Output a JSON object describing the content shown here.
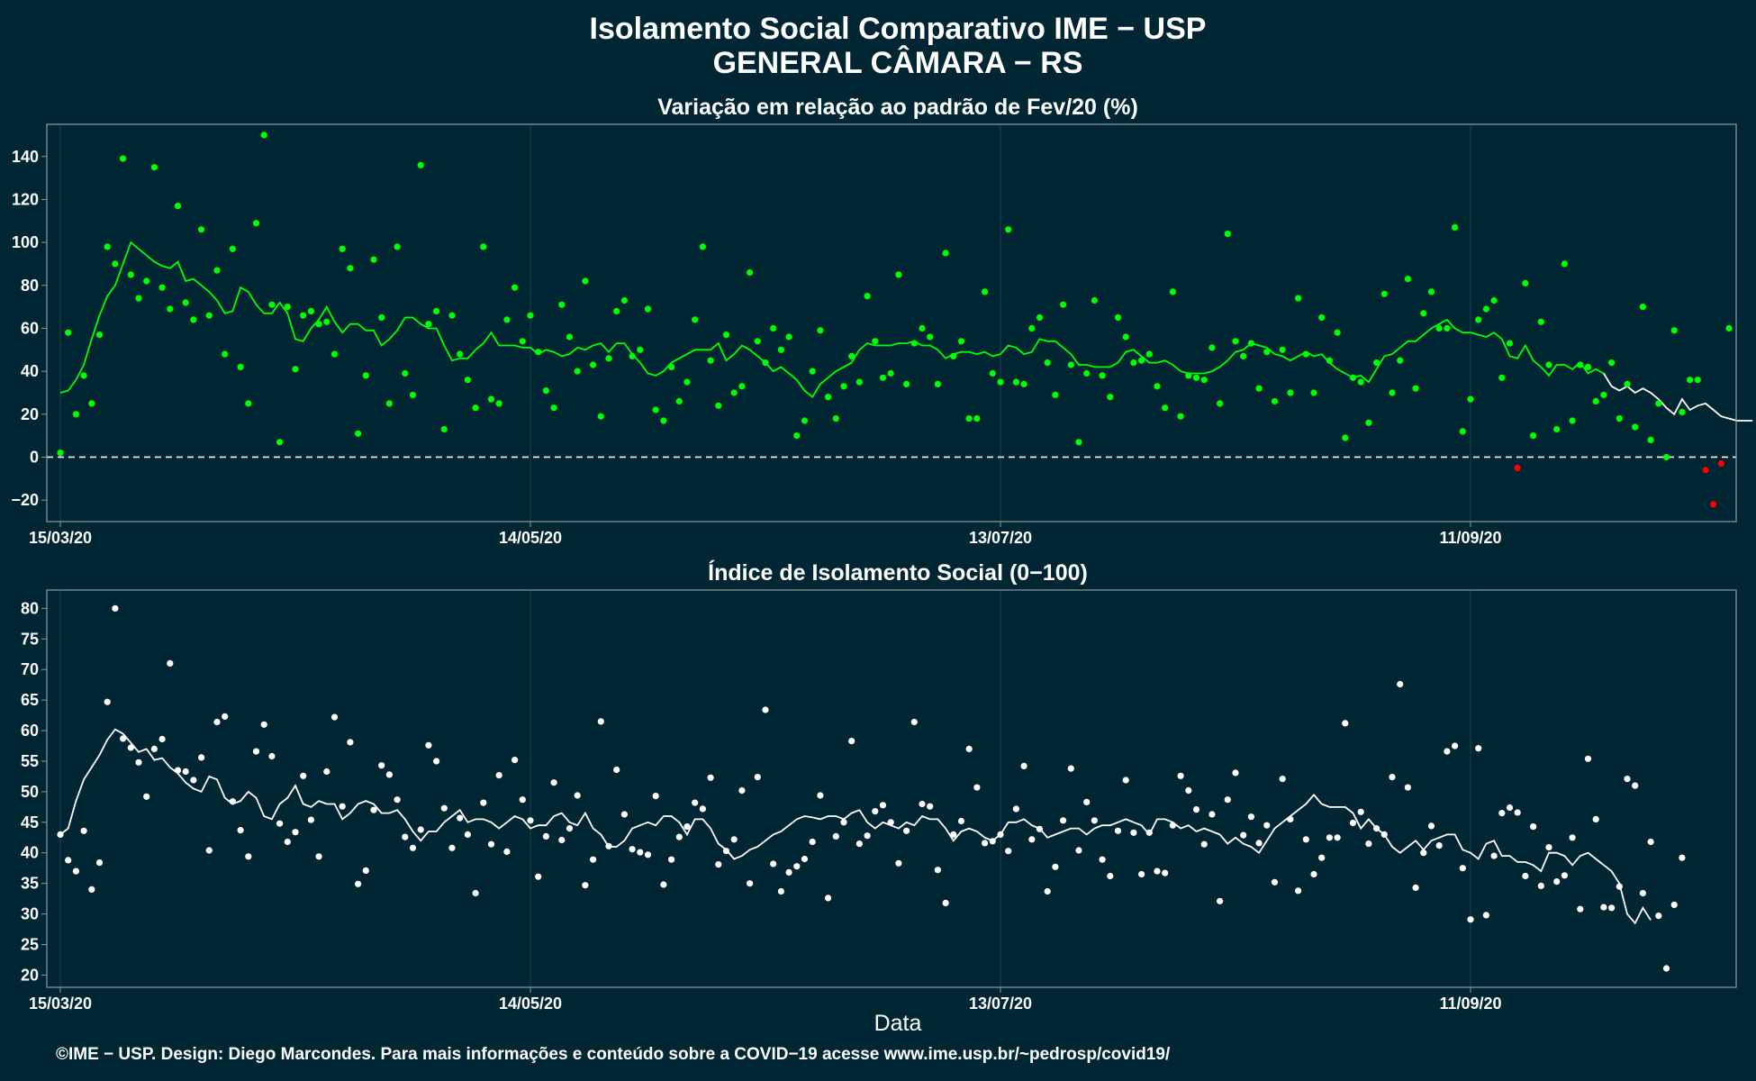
{
  "header": {
    "title_line1": "Isolamento Social Comparativo IME − USP",
    "title_line2": "GENERAL CÂMARA − RS"
  },
  "footer": "©IME − USP. Design: Diego Marcondes. Para mais informações e conteúdo sobre a COVID−19 acesse www.ime.usp.br/~pedrosp/covid19/",
  "colors": {
    "background": "#002633",
    "panel_border": "#8a9ba3",
    "grid": "#1d4250",
    "green_series": "#00ff00",
    "negative_points": "#ff0000",
    "white_series": "#ffffff",
    "zero_line": "#ffffff"
  },
  "chart_data": [
    {
      "type": "scatter",
      "title": "Variação em relação ao padrão de Fev/20 (%)",
      "xlabel": "",
      "ylabel": "",
      "x_start": "2020-03-15",
      "x_ticks": [
        "15/03/20",
        "14/05/20",
        "13/07/20",
        "11/09/20"
      ],
      "ylim": [
        -30,
        155
      ],
      "y_ticks": [
        -20,
        0,
        20,
        40,
        60,
        80,
        100,
        120,
        140
      ],
      "grid": true,
      "reference_line": 0,
      "series": [
        {
          "values": [
            2,
            58,
            20,
            38,
            25,
            57,
            98,
            90,
            139,
            85,
            74,
            82,
            135,
            79,
            69,
            117,
            72,
            64,
            106,
            66,
            87,
            48,
            97,
            42,
            25,
            109,
            150,
            71,
            7,
            70,
            41,
            66,
            68,
            62,
            63,
            48,
            97,
            88,
            11,
            38,
            92,
            65,
            25,
            98,
            39,
            29,
            136,
            62,
            68,
            13,
            66,
            48,
            36,
            23,
            98,
            27,
            25,
            64,
            79,
            54,
            66,
            49,
            31,
            23,
            71,
            56,
            40,
            82,
            43,
            19,
            46,
            68,
            73,
            47,
            50,
            69,
            22,
            17,
            42,
            26,
            35,
            64,
            98,
            45,
            24,
            57,
            30,
            33,
            86,
            54,
            44,
            60,
            50,
            56,
            10,
            17,
            40,
            59,
            28,
            18,
            33,
            47,
            35,
            75,
            54,
            37,
            39,
            85,
            34,
            53,
            60,
            56,
            34,
            95,
            47,
            54,
            18,
            18,
            77,
            39,
            35,
            106,
            35,
            34,
            60,
            65,
            44,
            29,
            71,
            43,
            7,
            39,
            73,
            38,
            28,
            65,
            56,
            44,
            45,
            48,
            33,
            23,
            77,
            19,
            38,
            37,
            36,
            51,
            25,
            104,
            54,
            47,
            53,
            32,
            49,
            26,
            50,
            30,
            74,
            48,
            30,
            65,
            45,
            58,
            9,
            37,
            35,
            16,
            44,
            76,
            30,
            45,
            83,
            32,
            67,
            77,
            60,
            60,
            107,
            12,
            27,
            64,
            69,
            73,
            37,
            53,
            -5,
            81,
            10,
            63,
            43,
            13,
            90,
            17,
            43,
            42,
            26,
            29,
            44,
            18,
            34,
            14,
            70,
            8,
            25,
            0,
            59,
            21,
            36,
            36,
            -6,
            -22,
            -3,
            60
          ],
          "color": "#00ff00",
          "negative_color": "#ff0000"
        },
        {
          "type": "line",
          "values": [
            30,
            31,
            36,
            43,
            55,
            66,
            75,
            80,
            90,
            100,
            97,
            94,
            91,
            89,
            88,
            91,
            82,
            83,
            80,
            77,
            73,
            67,
            68,
            79,
            77,
            71,
            67,
            67,
            72,
            67,
            55,
            54,
            60,
            64,
            70,
            63,
            58,
            62,
            62,
            59,
            59,
            52,
            55,
            59,
            65,
            65,
            62,
            60,
            60,
            52,
            45,
            46,
            46,
            50,
            53,
            58,
            52,
            52,
            52,
            51,
            51,
            48,
            50,
            49,
            47,
            48,
            51,
            50,
            52,
            53,
            49,
            53,
            53,
            48,
            44,
            39,
            38,
            40,
            44,
            46,
            48,
            50,
            50,
            50,
            53,
            45,
            48,
            52,
            50,
            47,
            44,
            40,
            42,
            39,
            36,
            31,
            28,
            34,
            37,
            40,
            42,
            44,
            50,
            53,
            52,
            52,
            52,
            53,
            53,
            54,
            52,
            52,
            50,
            46,
            48,
            49,
            49,
            48,
            49,
            47,
            48,
            52,
            51,
            48,
            49,
            55,
            54,
            54,
            51,
            48,
            43,
            43,
            42,
            42,
            42,
            44,
            49,
            50,
            47,
            44,
            44,
            45,
            43,
            40,
            39,
            39,
            39,
            40,
            42,
            45,
            49,
            50,
            53,
            52,
            51,
            48,
            47,
            45,
            47,
            49,
            47,
            48,
            44,
            41,
            39,
            37,
            38,
            35,
            41,
            47,
            48,
            51,
            54,
            54,
            57,
            60,
            62,
            64,
            60,
            58,
            58,
            57,
            56,
            58,
            55,
            47,
            46,
            52,
            45,
            42,
            38,
            43,
            43,
            41,
            44,
            39,
            41,
            39,
            33,
            31,
            33,
            30,
            32,
            30,
            27,
            23,
            20,
            27,
            22,
            24,
            25,
            22,
            19,
            18,
            17,
            17,
            17
          ]
        }
      ]
    },
    {
      "type": "scatter",
      "title": "Índice de Isolamento Social (0−100)",
      "xlabel": "Data",
      "ylabel": "",
      "x_start": "2020-03-15",
      "x_ticks": [
        "15/03/20",
        "14/05/20",
        "13/07/20",
        "11/09/20"
      ],
      "ylim": [
        18,
        83
      ],
      "y_ticks": [
        20,
        25,
        30,
        35,
        40,
        45,
        50,
        55,
        60,
        65,
        70,
        75,
        80
      ],
      "grid": true,
      "series": [
        {
          "values": [
            43,
            38.8,
            37,
            43.6,
            34,
            38.4,
            64.7,
            80,
            58.7,
            57.2,
            54.8,
            49.2,
            57,
            58.6,
            71,
            53.5,
            53.3,
            51.9,
            55.6,
            40.4,
            61.4,
            62.3,
            48.4,
            43.7,
            39.4,
            56.6,
            61,
            55.8,
            44.8,
            41.8,
            43.4,
            52.6,
            45.4,
            39.4,
            53.3,
            62.2,
            47.6,
            58.1,
            34.9,
            37.1,
            47,
            54.3,
            52.8,
            48.7,
            42.6,
            40.8,
            43.8,
            57.6,
            55,
            47.3,
            40.8,
            45.7,
            43,
            33.4,
            48.2,
            41.4,
            52.7,
            40.2,
            55.2,
            48.7,
            45.3,
            36.1,
            42.7,
            51.5,
            42.1,
            44,
            49.4,
            34.7,
            38.9,
            61.5,
            41.1,
            53.6,
            46.3,
            40.6,
            40.1,
            39.7,
            49.3,
            34.8,
            38.9,
            42.6,
            44.3,
            48.2,
            47.2,
            52.3,
            38.1,
            40.3,
            42.2,
            50.2,
            35,
            52.4,
            63.4,
            38.2,
            33.7,
            36.8,
            37.8,
            39,
            41.8,
            49.4,
            32.6,
            42.7,
            45,
            58.3,
            41.5,
            42.8,
            46.8,
            47.8,
            45,
            38.3,
            43.6,
            61.4,
            48,
            47.6,
            37.2,
            31.8,
            43,
            45.2,
            57,
            50.7,
            41.6,
            41.9,
            43,
            40.3,
            47.2,
            54.2,
            42.2,
            43.9,
            33.7,
            37.7,
            45.3,
            53.8,
            40.4,
            48.3,
            45.3,
            38.9,
            36.2,
            43.6,
            51.9,
            43.3,
            36.5,
            43.3,
            37,
            36.7,
            44.5,
            52.6,
            50.2,
            47.1,
            41.4,
            46.3,
            32.1,
            48.7,
            53.1,
            42.9,
            45.9,
            41.6,
            44.5,
            35.2,
            52.1,
            45.5,
            33.8,
            42.2,
            36.5,
            39.2,
            42.5,
            42.5,
            61.2,
            44.9,
            46.7,
            41.5,
            44,
            43,
            52.4,
            67.6,
            50.7,
            34.3,
            40,
            44.4,
            41.2,
            56.6,
            57.5,
            37.5,
            29.1,
            57.1,
            29.8,
            39.5,
            46.5,
            47.4,
            46.6,
            36.2,
            44.3,
            34.6,
            40.9,
            35.3,
            36.3,
            42.5,
            30.8,
            55.4,
            45.5,
            31.1,
            31,
            34.5,
            52.1,
            51,
            33.4,
            41.8,
            29.7,
            21.1,
            31.5,
            39.2
          ],
          "color": "#ffffff"
        },
        {
          "type": "line",
          "values": [
            43,
            44,
            48.5,
            52,
            54,
            56,
            58.5,
            60.2,
            59.5,
            58,
            56.5,
            57,
            55.2,
            55.5,
            54,
            53,
            51.5,
            50.5,
            50,
            52.5,
            52,
            49,
            48,
            48.5,
            50,
            49,
            46,
            45.5,
            48,
            49,
            51,
            48,
            47.5,
            48.5,
            48,
            48,
            45.5,
            46.5,
            48,
            48.5,
            48,
            46.5,
            46.5,
            47,
            45.5,
            43.5,
            42,
            43.5,
            43.5,
            45,
            46,
            47,
            45,
            45.5,
            45.5,
            45,
            44,
            45,
            46,
            45.5,
            44,
            44.5,
            44.5,
            46,
            46.5,
            45,
            44.5,
            46.5,
            44,
            43,
            41,
            41,
            42,
            44,
            44.5,
            45,
            44.5,
            46,
            46,
            45,
            43,
            45.5,
            45.5,
            44,
            41.5,
            40.5,
            39,
            39.5,
            40.5,
            41,
            42,
            43,
            43.5,
            44.5,
            45.5,
            46,
            45.8,
            45.5,
            46,
            46,
            45.5,
            46.5,
            47,
            45,
            44,
            45,
            44.5,
            44,
            45,
            44.5,
            46,
            45.5,
            45.5,
            44,
            42,
            43.5,
            44,
            43.5,
            42.5,
            42,
            43,
            45,
            45,
            45.5,
            44.5,
            44,
            42.5,
            43,
            43.5,
            44,
            44,
            43,
            44,
            44.5,
            44.5,
            45,
            45.5,
            45,
            44.5,
            43,
            45.5,
            45.5,
            45,
            44,
            44.5,
            43.5,
            44,
            43.5,
            43,
            41.5,
            42.5,
            41.5,
            41,
            40,
            42,
            44,
            45,
            46,
            47,
            48,
            49.5,
            48,
            47.5,
            47.5,
            47.5,
            46.5,
            44,
            45.5,
            44,
            43,
            41,
            40,
            41,
            42,
            40.5,
            42,
            42.5,
            43,
            43,
            40.5,
            40,
            39,
            41.5,
            42,
            39.5,
            39.5,
            38.5,
            38.5,
            38,
            37,
            40,
            40,
            39.5,
            38,
            39.5,
            40,
            39,
            38,
            37,
            35,
            30,
            28.5,
            31,
            29
          ]
        }
      ]
    }
  ]
}
